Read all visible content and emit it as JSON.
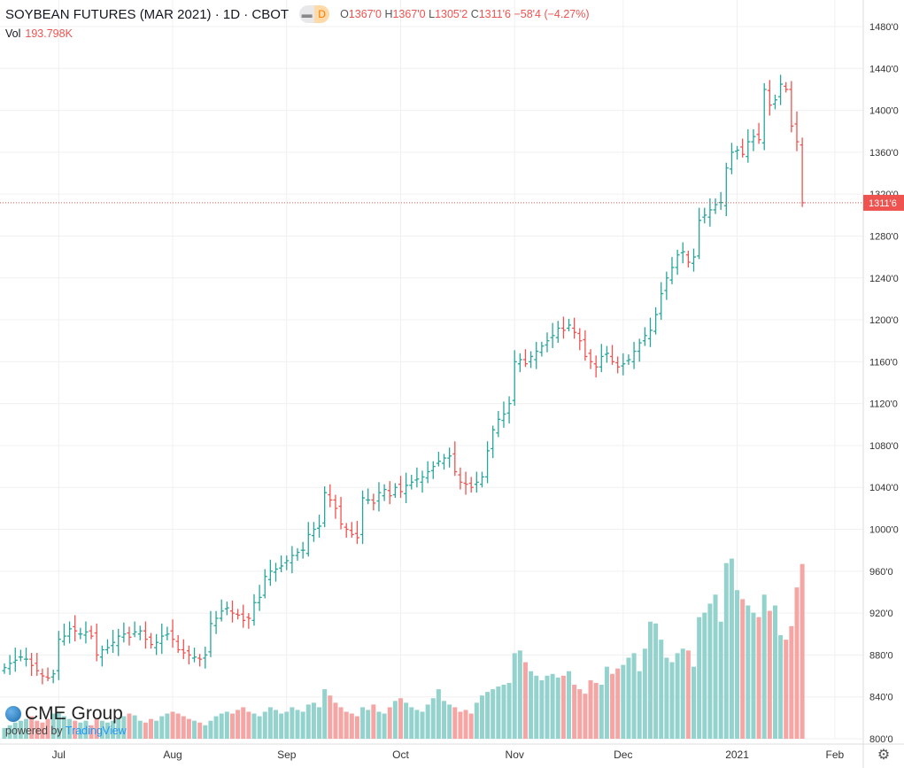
{
  "header": {
    "title": "SOYBEAN FUTURES (MAR 2021) · 1D · CBOT",
    "interval_badge": "D",
    "o_label": "O",
    "o": "1367'0",
    "h_label": "H",
    "h": "1367'0",
    "l_label": "L",
    "l": "1305'2",
    "c_label": "C",
    "c": "1311'6",
    "change": "−58'4 (−4.27%)"
  },
  "volume_legend": {
    "label": "Vol",
    "value": "193.798K"
  },
  "branding": {
    "logo": "CME Group",
    "powered_by": "powered by",
    "tradingview": "TradingView"
  },
  "colors": {
    "up": "#26a69a",
    "down": "#ef5350",
    "up_vol": "#94d3cd",
    "down_vol": "#f5a5a4"
  },
  "chart_data": {
    "type": "ohlc",
    "title": "SOYBEAN FUTURES (MAR 2021) · 1D · CBOT",
    "ylim": [
      800,
      1480
    ],
    "yticks": [
      "800'0",
      "840'0",
      "880'0",
      "920'0",
      "960'0",
      "1000'0",
      "1040'0",
      "1080'0",
      "1120'0",
      "1160'0",
      "1200'0",
      "1240'0",
      "1280'0",
      "1320'0",
      "1360'0",
      "1400'0",
      "1440'0",
      "1480'0"
    ],
    "last_price": 1311.75,
    "last_price_label": "1311'6",
    "xticks": [
      {
        "label": "Jul",
        "bar": 10
      },
      {
        "label": "Aug",
        "bar": 31
      },
      {
        "label": "Sep",
        "bar": 52
      },
      {
        "label": "Oct",
        "bar": 73
      },
      {
        "label": "Nov",
        "bar": 94
      },
      {
        "label": "Dec",
        "bar": 114
      },
      {
        "label": "2021",
        "bar": 135
      },
      {
        "label": "Feb",
        "bar": 153
      }
    ],
    "close": [
      868,
      872,
      875,
      878,
      876,
      870,
      865,
      860,
      858,
      862,
      895,
      898,
      905,
      903,
      900,
      902,
      898,
      880,
      885,
      887,
      892,
      898,
      900,
      897,
      902,
      903,
      895,
      890,
      892,
      898,
      900,
      895,
      885,
      882,
      880,
      878,
      876,
      880,
      910,
      915,
      922,
      925,
      920,
      918,
      913,
      915,
      930,
      935,
      955,
      960,
      962,
      965,
      970,
      975,
      978,
      980,
      995,
      1000,
      1003,
      1035,
      1028,
      1020,
      1005,
      1000,
      995,
      992,
      1030,
      1028,
      1025,
      1035,
      1038,
      1032,
      1040,
      1036,
      1042,
      1045,
      1048,
      1050,
      1055,
      1060,
      1065,
      1068,
      1070,
      1055,
      1045,
      1043,
      1040,
      1045,
      1050,
      1075,
      1095,
      1105,
      1110,
      1120,
      1160,
      1162,
      1158,
      1165,
      1170,
      1175,
      1180,
      1185,
      1192,
      1190,
      1195,
      1188,
      1180,
      1165,
      1160,
      1155,
      1165,
      1168,
      1160,
      1155,
      1158,
      1162,
      1170,
      1178,
      1185,
      1190,
      1205,
      1225,
      1240,
      1250,
      1262,
      1265,
      1255,
      1260,
      1295,
      1300,
      1305,
      1310,
      1312,
      1345,
      1360,
      1362,
      1358,
      1370,
      1375,
      1372,
      1420,
      1405,
      1410,
      1425,
      1420,
      1385,
      1370,
      1311.75
    ],
    "volume_k": [
      12,
      15,
      18,
      20,
      22,
      25,
      20,
      18,
      22,
      28,
      30,
      25,
      22,
      20,
      18,
      20,
      15,
      22,
      20,
      18,
      20,
      22,
      25,
      28,
      26,
      20,
      18,
      22,
      20,
      25,
      28,
      30,
      28,
      25,
      22,
      20,
      18,
      15,
      20,
      25,
      28,
      30,
      28,
      32,
      35,
      30,
      28,
      25,
      30,
      35,
      32,
      28,
      30,
      35,
      32,
      30,
      38,
      40,
      35,
      55,
      48,
      40,
      35,
      30,
      28,
      25,
      35,
      32,
      38,
      30,
      28,
      35,
      42,
      45,
      40,
      35,
      32,
      30,
      38,
      45,
      55,
      42,
      38,
      35,
      30,
      32,
      28,
      40,
      48,
      52,
      55,
      58,
      60,
      62,
      95,
      98,
      85,
      75,
      70,
      65,
      70,
      72,
      68,
      70,
      75,
      60,
      55,
      50,
      65,
      62,
      60,
      80,
      72,
      78,
      82,
      90,
      95,
      75,
      100,
      130,
      128,
      110,
      90,
      85,
      95,
      100,
      98,
      80,
      135,
      140,
      150,
      160,
      130,
      195,
      200,
      165,
      155,
      148,
      140,
      135,
      160,
      142,
      148,
      115,
      110,
      125,
      168,
      194
    ]
  }
}
